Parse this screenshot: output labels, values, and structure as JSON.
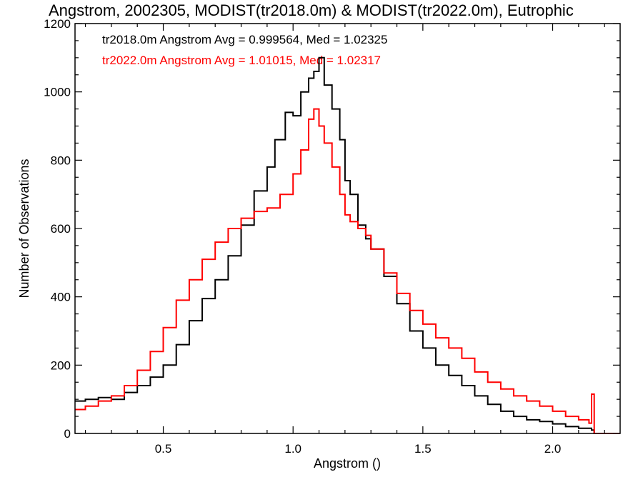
{
  "chart_data": {
    "type": "histogram-line",
    "title": "Angstrom, 2002305, MODIST(tr2018.0m) & MODIST(tr2022.0m), Eutrophic",
    "xlabel": "Angstrom ()",
    "ylabel": "Number of Observations",
    "xlim": [
      0.16,
      2.26
    ],
    "ylim": [
      0,
      1200
    ],
    "x_ticks": [
      0.5,
      1.0,
      1.5,
      2.0
    ],
    "x_tick_labels": [
      "0.5",
      "1.0",
      "1.5",
      "2.0"
    ],
    "y_ticks": [
      0,
      200,
      400,
      600,
      800,
      1000,
      1200
    ],
    "y_tick_labels": [
      "0",
      "200",
      "400",
      "600",
      "800",
      "1000",
      "1200"
    ],
    "legend": [
      {
        "text": "tr2018.0m Angstrom Avg = 0.999564, Med = 1.02325",
        "color": "#000000"
      },
      {
        "text": "tr2022.0m Angstrom Avg = 1.01015, Med = 1.02317",
        "color": "#ff0000"
      }
    ],
    "series": [
      {
        "color": "#000000",
        "points": [
          [
            0.16,
            95
          ],
          [
            0.2,
            100
          ],
          [
            0.25,
            105
          ],
          [
            0.3,
            100
          ],
          [
            0.35,
            120
          ],
          [
            0.4,
            140
          ],
          [
            0.45,
            165
          ],
          [
            0.5,
            200
          ],
          [
            0.55,
            260
          ],
          [
            0.6,
            330
          ],
          [
            0.65,
            395
          ],
          [
            0.7,
            450
          ],
          [
            0.75,
            520
          ],
          [
            0.8,
            610
          ],
          [
            0.85,
            710
          ],
          [
            0.9,
            780
          ],
          [
            0.93,
            860
          ],
          [
            0.97,
            940
          ],
          [
            1.0,
            930
          ],
          [
            1.03,
            1000
          ],
          [
            1.06,
            1040
          ],
          [
            1.08,
            1060
          ],
          [
            1.1,
            1100
          ],
          [
            1.12,
            1020
          ],
          [
            1.15,
            950
          ],
          [
            1.18,
            860
          ],
          [
            1.2,
            740
          ],
          [
            1.22,
            700
          ],
          [
            1.25,
            610
          ],
          [
            1.28,
            570
          ],
          [
            1.3,
            540
          ],
          [
            1.35,
            460
          ],
          [
            1.4,
            380
          ],
          [
            1.45,
            300
          ],
          [
            1.5,
            250
          ],
          [
            1.55,
            200
          ],
          [
            1.6,
            170
          ],
          [
            1.65,
            140
          ],
          [
            1.7,
            110
          ],
          [
            1.75,
            85
          ],
          [
            1.8,
            65
          ],
          [
            1.85,
            50
          ],
          [
            1.9,
            40
          ],
          [
            1.95,
            35
          ],
          [
            2.0,
            28
          ],
          [
            2.05,
            20
          ],
          [
            2.1,
            15
          ],
          [
            2.15,
            10
          ],
          [
            2.16,
            0
          ],
          [
            2.26,
            0
          ]
        ]
      },
      {
        "color": "#ff0000",
        "points": [
          [
            0.16,
            70
          ],
          [
            0.2,
            80
          ],
          [
            0.25,
            95
          ],
          [
            0.3,
            110
          ],
          [
            0.35,
            140
          ],
          [
            0.4,
            185
          ],
          [
            0.45,
            240
          ],
          [
            0.5,
            310
          ],
          [
            0.55,
            390
          ],
          [
            0.6,
            450
          ],
          [
            0.65,
            510
          ],
          [
            0.7,
            560
          ],
          [
            0.75,
            600
          ],
          [
            0.8,
            630
          ],
          [
            0.85,
            650
          ],
          [
            0.9,
            660
          ],
          [
            0.95,
            700
          ],
          [
            1.0,
            760
          ],
          [
            1.03,
            830
          ],
          [
            1.06,
            920
          ],
          [
            1.08,
            950
          ],
          [
            1.1,
            900
          ],
          [
            1.12,
            850
          ],
          [
            1.15,
            780
          ],
          [
            1.18,
            700
          ],
          [
            1.2,
            640
          ],
          [
            1.22,
            620
          ],
          [
            1.25,
            600
          ],
          [
            1.28,
            580
          ],
          [
            1.3,
            540
          ],
          [
            1.35,
            470
          ],
          [
            1.4,
            410
          ],
          [
            1.45,
            360
          ],
          [
            1.5,
            320
          ],
          [
            1.55,
            280
          ],
          [
            1.6,
            250
          ],
          [
            1.65,
            220
          ],
          [
            1.7,
            180
          ],
          [
            1.75,
            150
          ],
          [
            1.8,
            130
          ],
          [
            1.85,
            110
          ],
          [
            1.9,
            95
          ],
          [
            1.95,
            80
          ],
          [
            2.0,
            65
          ],
          [
            2.05,
            50
          ],
          [
            2.1,
            40
          ],
          [
            2.14,
            30
          ],
          [
            2.15,
            115
          ],
          [
            2.16,
            0
          ],
          [
            2.26,
            0
          ]
        ]
      }
    ]
  }
}
